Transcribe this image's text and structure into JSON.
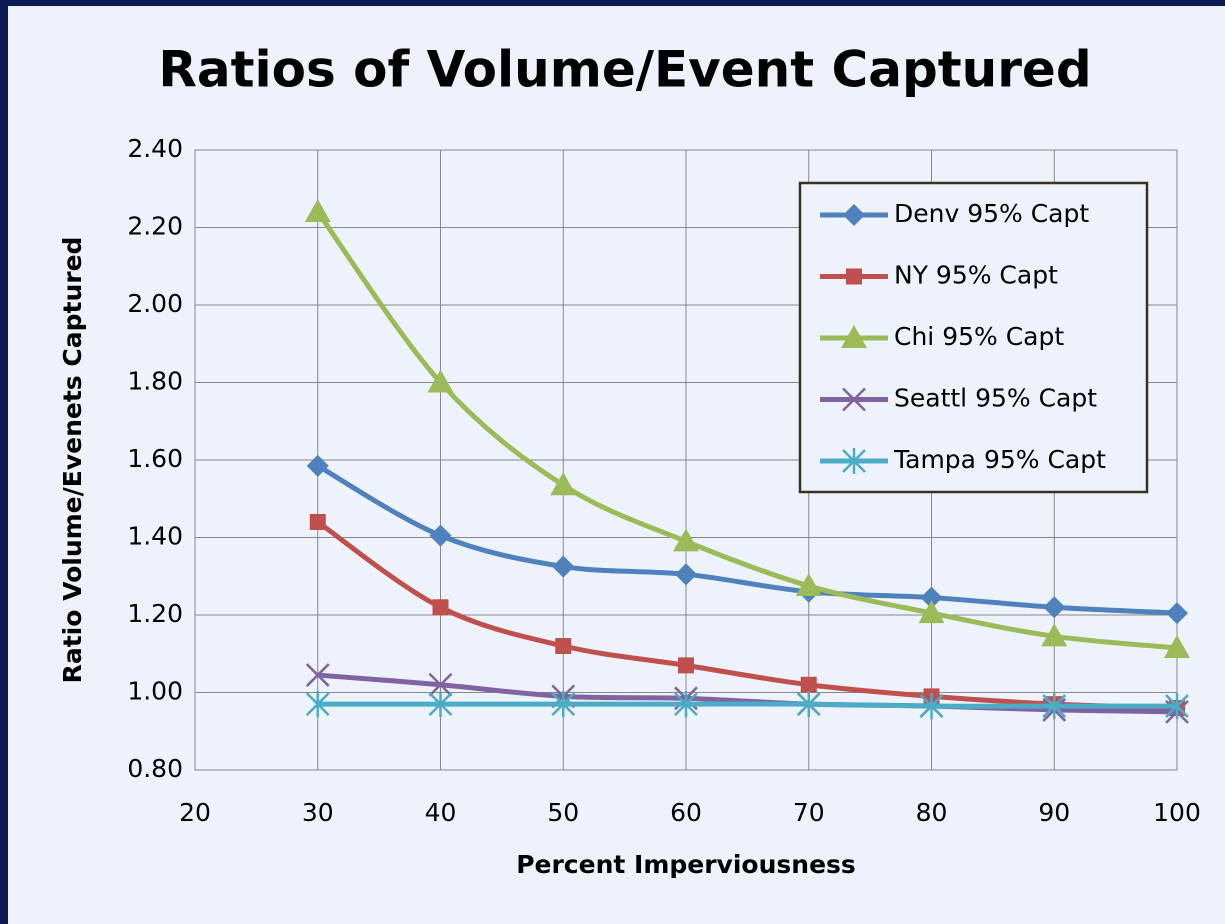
{
  "chart_data": {
    "type": "line",
    "title": "Ratios of Volume/Event Captured",
    "x_label": "Percent Imperviousness",
    "y_label": "Ratio Volume/Evenets Captured",
    "x": [
      30,
      40,
      50,
      60,
      70,
      80,
      90,
      100
    ],
    "series": [
      {
        "name": "Denv 95% Capt",
        "color": "#4f81bd",
        "marker": "diamond",
        "values": [
          1.585,
          1.405,
          1.325,
          1.305,
          1.26,
          1.245,
          1.22,
          1.205
        ]
      },
      {
        "name": "NY 95% Capt",
        "color": "#c0504d",
        "marker": "square",
        "values": [
          1.44,
          1.22,
          1.12,
          1.07,
          1.02,
          0.99,
          0.97,
          0.96
        ]
      },
      {
        "name": "Chi 95% Capt",
        "color": "#9bbb59",
        "marker": "triangle",
        "values": [
          2.24,
          1.8,
          1.535,
          1.39,
          1.275,
          1.205,
          1.145,
          1.115
        ]
      },
      {
        "name": "Seattl 95% Capt",
        "color": "#8064a2",
        "marker": "x",
        "values": [
          1.045,
          1.02,
          0.99,
          0.985,
          0.97,
          0.965,
          0.955,
          0.95
        ]
      },
      {
        "name": "Tampa 95% Capt",
        "color": "#4bacc6",
        "marker": "asterisk",
        "values": [
          0.97,
          0.97,
          0.97,
          0.97,
          0.97,
          0.965,
          0.965,
          0.965
        ]
      }
    ],
    "xlim": [
      20,
      100
    ],
    "xticks": [
      20,
      30,
      40,
      50,
      60,
      70,
      80,
      90,
      100
    ],
    "ylim": [
      0.8,
      2.4
    ],
    "yticks": [
      {
        "value": 0.8,
        "label": "0.80"
      },
      {
        "value": 1.0,
        "label": "1.00"
      },
      {
        "value": 1.2,
        "label": "1.20"
      },
      {
        "value": 1.4,
        "label": "1.40"
      },
      {
        "value": 1.6,
        "label": "1.60"
      },
      {
        "value": 1.8,
        "label": "1.80"
      },
      {
        "value": 2.0,
        "label": "2.00"
      },
      {
        "value": 2.2,
        "label": "2.20"
      },
      {
        "value": 2.4,
        "label": "2.40"
      }
    ],
    "grid": true,
    "legend": "top-right",
    "smooth": true
  }
}
